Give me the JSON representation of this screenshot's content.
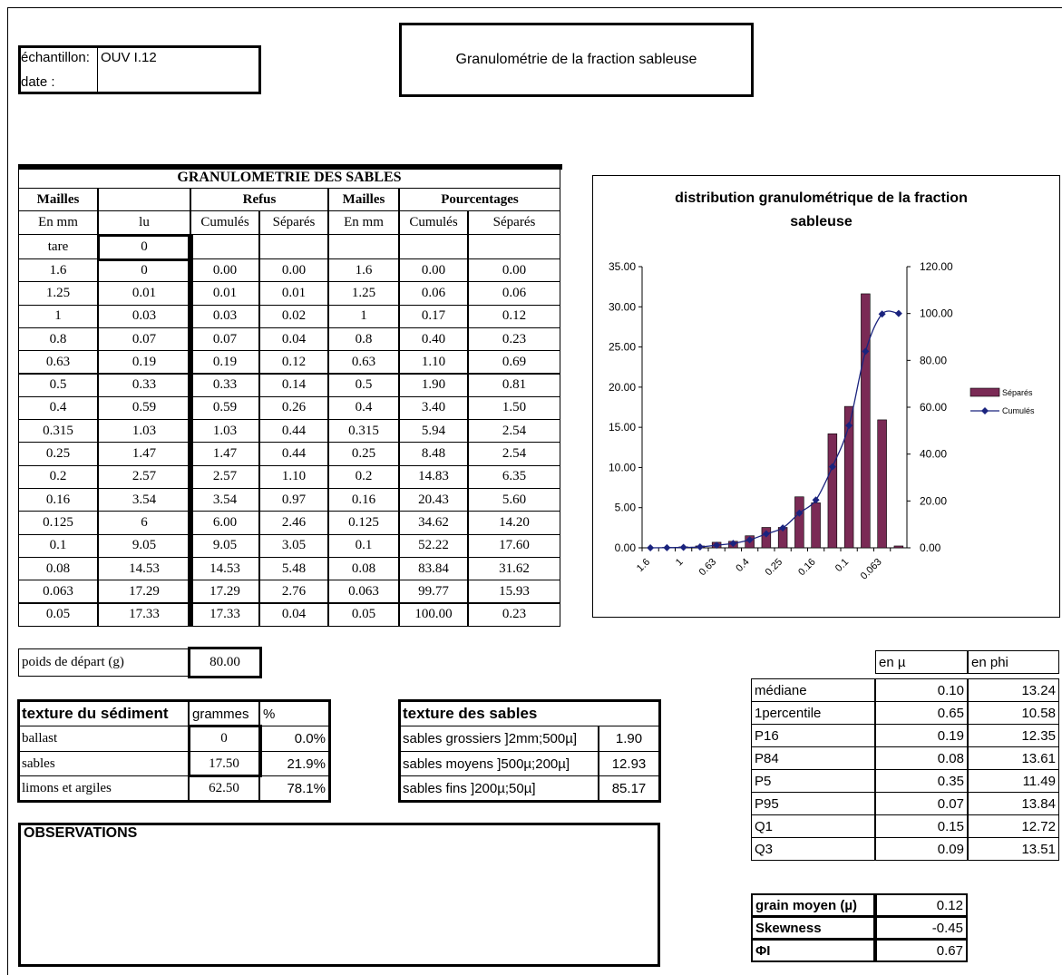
{
  "header": {
    "sample_label": "échantillon:",
    "sample": "OUV I.12",
    "date_label": "date :",
    "title": "Granulométrie de la fraction sableuse"
  },
  "granulometry_table": {
    "title": "GRANULOMETRIE DES SABLES",
    "header_top": [
      "Mailles",
      "Refus",
      "Mailles",
      "Pourcentages"
    ],
    "header_sub": [
      "En mm",
      "lu",
      "Cumulés",
      "Séparés",
      "En mm",
      "Cumulés",
      "Séparés"
    ],
    "tare": [
      "tare",
      "0"
    ],
    "rows": [
      [
        "1.6",
        "0",
        "0.00",
        "0.00",
        "1.6",
        "0.00",
        "0.00"
      ],
      [
        "1.25",
        "0.01",
        "0.01",
        "0.01",
        "1.25",
        "0.06",
        "0.06"
      ],
      [
        "1",
        "0.03",
        "0.03",
        "0.02",
        "1",
        "0.17",
        "0.12"
      ],
      [
        "0.8",
        "0.07",
        "0.07",
        "0.04",
        "0.8",
        "0.40",
        "0.23"
      ],
      [
        "0.63",
        "0.19",
        "0.19",
        "0.12",
        "0.63",
        "1.10",
        "0.69"
      ],
      [
        "0.5",
        "0.33",
        "0.33",
        "0.14",
        "0.5",
        "1.90",
        "0.81"
      ],
      [
        "0.4",
        "0.59",
        "0.59",
        "0.26",
        "0.4",
        "3.40",
        "1.50"
      ],
      [
        "0.315",
        "1.03",
        "1.03",
        "0.44",
        "0.315",
        "5.94",
        "2.54"
      ],
      [
        "0.25",
        "1.47",
        "1.47",
        "0.44",
        "0.25",
        "8.48",
        "2.54"
      ],
      [
        "0.2",
        "2.57",
        "2.57",
        "1.10",
        "0.2",
        "14.83",
        "6.35"
      ],
      [
        "0.16",
        "3.54",
        "3.54",
        "0.97",
        "0.16",
        "20.43",
        "5.60"
      ],
      [
        "0.125",
        "6",
        "6.00",
        "2.46",
        "0.125",
        "34.62",
        "14.20"
      ],
      [
        "0.1",
        "9.05",
        "9.05",
        "3.05",
        "0.1",
        "52.22",
        "17.60"
      ],
      [
        "0.08",
        "14.53",
        "14.53",
        "5.48",
        "0.08",
        "83.84",
        "31.62"
      ],
      [
        "0.063",
        "17.29",
        "17.29",
        "2.76",
        "0.063",
        "99.77",
        "15.93"
      ],
      [
        "0.05",
        "17.33",
        "17.33",
        "0.04",
        "0.05",
        "100.00",
        "0.23"
      ]
    ]
  },
  "chart_data": {
    "type": "bar",
    "title": "distribution granulométrique de la fraction sableuse",
    "categories": [
      "1.6",
      null,
      "1",
      null,
      "0.63",
      null,
      "0.4",
      null,
      "0.25",
      null,
      "0.16",
      null,
      "0.1",
      null,
      "0.063",
      null
    ],
    "series": [
      {
        "name": "Séparés",
        "type": "bar",
        "color": "#7a2a55",
        "values": [
          0,
          0.06,
          0.12,
          0.23,
          0.69,
          0.81,
          1.5,
          2.54,
          2.54,
          6.35,
          5.6,
          14.2,
          17.6,
          31.62,
          15.93,
          0.23
        ]
      },
      {
        "name": "Cumulés",
        "type": "line",
        "axis": "y2",
        "color": "#1a237e",
        "values": [
          0,
          0.06,
          0.17,
          0.4,
          1.1,
          1.9,
          3.4,
          5.94,
          8.48,
          14.83,
          20.43,
          34.62,
          52.22,
          83.84,
          99.77,
          100
        ]
      }
    ],
    "ylim": [
      0,
      35
    ],
    "yticks": [
      {
        "value": 0,
        "label": "0.00"
      },
      {
        "value": 5,
        "label": "5.00"
      },
      {
        "value": 10,
        "label": "10.00"
      },
      {
        "value": 15,
        "label": "15.00"
      },
      {
        "value": 20,
        "label": "20.00"
      },
      {
        "value": 25,
        "label": "25.00"
      },
      {
        "value": 30,
        "label": "30.00"
      },
      {
        "value": 35,
        "label": "35.00"
      }
    ],
    "y2lim": [
      0,
      120
    ],
    "y2ticks": [
      {
        "value": 0,
        "label": "0.00"
      },
      {
        "value": 20,
        "label": "20.00"
      },
      {
        "value": 40,
        "label": "40.00"
      },
      {
        "value": 60,
        "label": "60.00"
      },
      {
        "value": 80,
        "label": "80.00"
      },
      {
        "value": 100,
        "label": "100.00"
      },
      {
        "value": 120,
        "label": "120.00"
      }
    ],
    "legend": "right"
  },
  "starting_weight": {
    "label": "poids de départ (g)",
    "value": "80.00"
  },
  "sediment_texture": {
    "header": [
      "texture du sédiment",
      "grammes",
      "%"
    ],
    "rows": [
      [
        "ballast",
        "0",
        "0.0%"
      ],
      [
        "sables",
        "17.50",
        "21.9%"
      ],
      [
        "limons et argiles",
        "62.50",
        "78.1%"
      ]
    ]
  },
  "sand_texture": {
    "header": "texture des sables",
    "rows": [
      [
        "sables grossiers ]2mm;500µ]",
        "1.90"
      ],
      [
        "sables moyens ]500µ;200µ]",
        "12.93"
      ],
      [
        "sables fins ]200µ;50µ]",
        "85.17"
      ]
    ]
  },
  "observations": {
    "title": "OBSERVATIONS"
  },
  "statistics": {
    "header": [
      "en µ",
      "en phi"
    ],
    "rows": [
      [
        "médiane",
        "0.10",
        "13.24"
      ],
      [
        "1percentile",
        "0.65",
        "10.58"
      ],
      [
        "P16",
        "0.19",
        "12.35"
      ],
      [
        "P84",
        "0.08",
        "13.61"
      ],
      [
        "P5",
        "0.35",
        "11.49"
      ],
      [
        "P95",
        "0.07",
        "13.84"
      ],
      [
        "Q1",
        "0.15",
        "12.72"
      ],
      [
        "Q3",
        "0.09",
        "13.51"
      ]
    ]
  },
  "summary": {
    "rows": [
      [
        "grain moyen (µ)",
        "0.12"
      ],
      [
        "Skewness",
        "-0.45"
      ],
      [
        "ΦI",
        "0.67"
      ]
    ]
  }
}
